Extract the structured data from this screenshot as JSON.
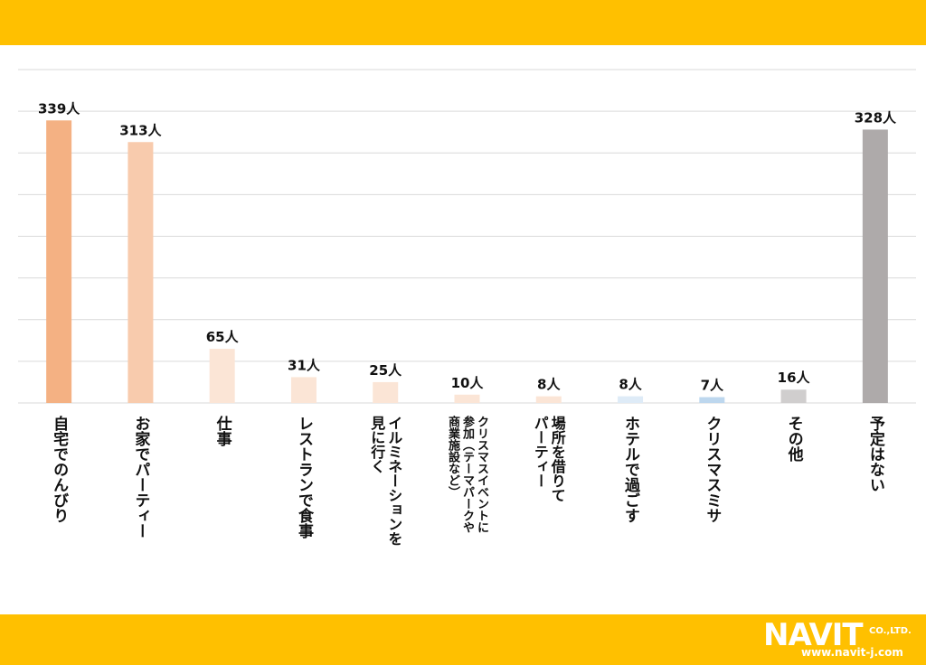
{
  "chart_data": {
    "type": "bar",
    "title": "",
    "xlabel": "",
    "ylabel": "",
    "unit": "人",
    "ylim": [
      0,
      400
    ],
    "grid": true,
    "categories": [
      [
        "自宅でのんびり"
      ],
      [
        "お家でパーティー"
      ],
      [
        "仕事"
      ],
      [
        "レストランで食事"
      ],
      [
        "イルミネーションを",
        "見に行く"
      ],
      [
        "クリスマスイベントに",
        "参加（テーマパークや",
        "商業施設など）"
      ],
      [
        "場所を借りて",
        "パーティー"
      ],
      [
        "ホテルで過ごす"
      ],
      [
        "クリスマスミサ"
      ],
      [
        "その他"
      ],
      [
        "予定はない"
      ]
    ],
    "values": [
      339,
      313,
      65,
      31,
      25,
      10,
      8,
      8,
      7,
      16,
      328
    ],
    "value_labels": [
      "339人",
      "313人",
      "65人",
      "31人",
      "25人",
      "10人",
      "8人",
      "8人",
      "7人",
      "16人",
      "328人"
    ],
    "colors": [
      "#f4b183",
      "#f8cbad",
      "#fbe5d6",
      "#fbe5d6",
      "#fbe5d6",
      "#fbe5d6",
      "#fbe5d6",
      "#deebf7",
      "#bdd7ee",
      "#d0cece",
      "#aeaaaa"
    ]
  },
  "logo": {
    "main": "NAVIT",
    "company": "CO.,LTD.",
    "url": "www.navit-j.com"
  }
}
